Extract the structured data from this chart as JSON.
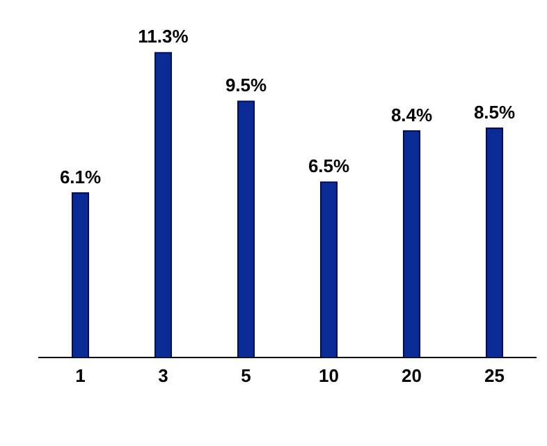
{
  "chart_data": {
    "type": "bar",
    "categories": [
      "1",
      "3",
      "5",
      "10",
      "20",
      "25"
    ],
    "values": [
      6.1,
      11.3,
      9.5,
      6.5,
      8.4,
      8.5
    ],
    "value_labels": [
      "6.1%",
      "11.3%",
      "9.5%",
      "6.5%",
      "8.4%",
      "8.5%"
    ],
    "color": "#0a2a96",
    "relative": false,
    "grid": false,
    "legend": false
  }
}
